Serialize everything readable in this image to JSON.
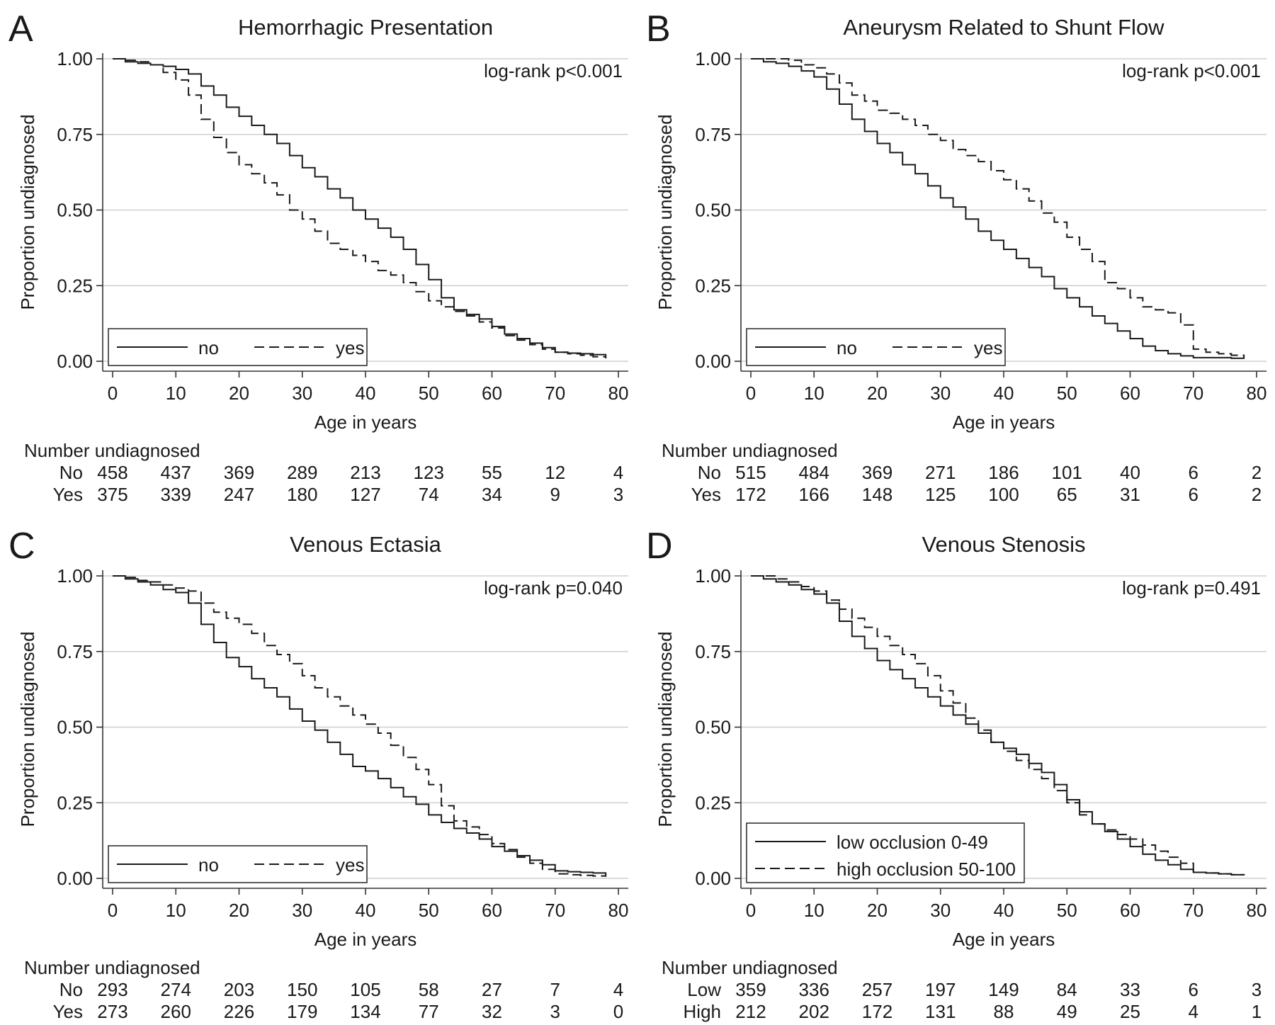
{
  "chart_data": [
    {
      "type": "line",
      "letter": "A",
      "title": "Hemorrhagic Presentation",
      "xlabel": "Age in years",
      "ylabel": "Proportion undiagnosed",
      "xlim": [
        0,
        80
      ],
      "ylim": [
        0,
        1
      ],
      "x_ticks": [
        "0",
        "10",
        "20",
        "30",
        "40",
        "50",
        "60",
        "70",
        "80"
      ],
      "y_ticks": [
        "0.00",
        "0.25",
        "0.50",
        "0.75",
        "1.00"
      ],
      "grid": true,
      "legend_position": "bottom-left",
      "annotation": "log-rank p<0.001",
      "series": [
        {
          "name": "no",
          "style": "solid",
          "x": [
            0,
            2,
            4,
            6,
            8,
            10,
            12,
            14,
            16,
            18,
            20,
            22,
            24,
            26,
            28,
            30,
            32,
            34,
            36,
            38,
            40,
            42,
            44,
            46,
            48,
            50,
            52,
            54,
            56,
            58,
            60,
            62,
            64,
            66,
            68,
            70,
            72,
            74,
            76,
            78
          ],
          "y": [
            1.0,
            0.99,
            0.985,
            0.98,
            0.975,
            0.965,
            0.95,
            0.91,
            0.88,
            0.84,
            0.81,
            0.78,
            0.75,
            0.72,
            0.68,
            0.64,
            0.61,
            0.57,
            0.54,
            0.5,
            0.47,
            0.44,
            0.41,
            0.37,
            0.32,
            0.27,
            0.21,
            0.17,
            0.155,
            0.14,
            0.115,
            0.09,
            0.075,
            0.06,
            0.045,
            0.03,
            0.027,
            0.025,
            0.022,
            0.01
          ]
        },
        {
          "name": "yes",
          "style": "dashed",
          "x": [
            0,
            2,
            4,
            6,
            8,
            10,
            12,
            14,
            16,
            18,
            20,
            22,
            24,
            26,
            28,
            30,
            32,
            34,
            36,
            38,
            40,
            42,
            44,
            46,
            48,
            50,
            52,
            54,
            56,
            58,
            60,
            62,
            64,
            66,
            68,
            70,
            72,
            74,
            76,
            78
          ],
          "y": [
            1.0,
            0.995,
            0.99,
            0.98,
            0.955,
            0.93,
            0.88,
            0.8,
            0.74,
            0.69,
            0.65,
            0.62,
            0.59,
            0.55,
            0.5,
            0.47,
            0.43,
            0.39,
            0.37,
            0.35,
            0.33,
            0.3,
            0.285,
            0.26,
            0.23,
            0.2,
            0.18,
            0.165,
            0.15,
            0.13,
            0.11,
            0.085,
            0.07,
            0.055,
            0.04,
            0.03,
            0.025,
            0.02,
            0.015,
            0.01
          ]
        }
      ],
      "risk_table": {
        "header": "Number undiagnosed",
        "rows": [
          {
            "label": "No",
            "values": [
              "458",
              "437",
              "369",
              "289",
              "213",
              "123",
              "55",
              "12",
              "4"
            ]
          },
          {
            "label": "Yes",
            "values": [
              "375",
              "339",
              "247",
              "180",
              "127",
              "74",
              "34",
              "9",
              "3"
            ]
          }
        ]
      }
    },
    {
      "type": "line",
      "letter": "B",
      "title": "Aneurysm Related to Shunt Flow",
      "xlabel": "Age in years",
      "ylabel": "Proportion undiagnosed",
      "xlim": [
        0,
        80
      ],
      "ylim": [
        0,
        1
      ],
      "x_ticks": [
        "0",
        "10",
        "20",
        "30",
        "40",
        "50",
        "60",
        "70",
        "80"
      ],
      "y_ticks": [
        "0.00",
        "0.25",
        "0.50",
        "0.75",
        "1.00"
      ],
      "grid": true,
      "legend_position": "bottom-left",
      "annotation": "log-rank p<0.001",
      "series": [
        {
          "name": "no",
          "style": "solid",
          "x": [
            0,
            2,
            4,
            6,
            8,
            10,
            12,
            14,
            16,
            18,
            20,
            22,
            24,
            26,
            28,
            30,
            32,
            34,
            36,
            38,
            40,
            42,
            44,
            46,
            48,
            50,
            52,
            54,
            56,
            58,
            60,
            62,
            64,
            66,
            68,
            70,
            72,
            74,
            76,
            78
          ],
          "y": [
            1.0,
            0.99,
            0.985,
            0.975,
            0.96,
            0.94,
            0.9,
            0.85,
            0.8,
            0.76,
            0.72,
            0.69,
            0.65,
            0.62,
            0.58,
            0.54,
            0.51,
            0.47,
            0.43,
            0.4,
            0.37,
            0.34,
            0.31,
            0.28,
            0.24,
            0.21,
            0.18,
            0.15,
            0.125,
            0.1,
            0.075,
            0.05,
            0.035,
            0.025,
            0.018,
            0.012,
            0.012,
            0.012,
            0.01,
            0.008
          ]
        },
        {
          "name": "yes",
          "style": "dashed",
          "x": [
            0,
            2,
            4,
            6,
            8,
            10,
            12,
            14,
            16,
            18,
            20,
            22,
            24,
            26,
            28,
            30,
            32,
            34,
            36,
            38,
            40,
            42,
            44,
            46,
            48,
            50,
            52,
            54,
            56,
            58,
            60,
            62,
            64,
            66,
            68,
            70,
            72,
            74,
            76,
            78
          ],
          "y": [
            1.0,
            1.0,
            1.0,
            0.995,
            0.98,
            0.97,
            0.95,
            0.92,
            0.88,
            0.86,
            0.83,
            0.82,
            0.8,
            0.78,
            0.75,
            0.73,
            0.7,
            0.68,
            0.66,
            0.63,
            0.6,
            0.57,
            0.53,
            0.49,
            0.46,
            0.41,
            0.37,
            0.33,
            0.26,
            0.24,
            0.21,
            0.18,
            0.17,
            0.16,
            0.12,
            0.04,
            0.03,
            0.025,
            0.02,
            0.01
          ]
        }
      ],
      "risk_table": {
        "header": "Number undiagnosed",
        "rows": [
          {
            "label": "No",
            "values": [
              "515",
              "484",
              "369",
              "271",
              "186",
              "101",
              "40",
              "6",
              "2"
            ]
          },
          {
            "label": "Yes",
            "values": [
              "172",
              "166",
              "148",
              "125",
              "100",
              "65",
              "31",
              "6",
              "2"
            ]
          }
        ]
      }
    },
    {
      "type": "line",
      "letter": "C",
      "title": "Venous Ectasia",
      "xlabel": "Age in years",
      "ylabel": "Proportion undiagnosed",
      "xlim": [
        0,
        80
      ],
      "ylim": [
        0,
        1
      ],
      "x_ticks": [
        "0",
        "10",
        "20",
        "30",
        "40",
        "50",
        "60",
        "70",
        "80"
      ],
      "y_ticks": [
        "0.00",
        "0.25",
        "0.50",
        "0.75",
        "1.00"
      ],
      "grid": true,
      "legend_position": "bottom-left",
      "annotation": "log-rank p=0.040",
      "series": [
        {
          "name": "no",
          "style": "solid",
          "x": [
            0,
            2,
            4,
            6,
            8,
            10,
            12,
            14,
            16,
            18,
            20,
            22,
            24,
            26,
            28,
            30,
            32,
            34,
            36,
            38,
            40,
            42,
            44,
            46,
            48,
            50,
            52,
            54,
            56,
            58,
            60,
            62,
            64,
            66,
            68,
            70,
            72,
            74,
            76,
            78
          ],
          "y": [
            1.0,
            0.99,
            0.98,
            0.97,
            0.955,
            0.945,
            0.91,
            0.84,
            0.78,
            0.73,
            0.7,
            0.66,
            0.63,
            0.6,
            0.56,
            0.52,
            0.49,
            0.45,
            0.41,
            0.37,
            0.355,
            0.33,
            0.3,
            0.27,
            0.245,
            0.21,
            0.185,
            0.165,
            0.15,
            0.13,
            0.105,
            0.09,
            0.075,
            0.06,
            0.045,
            0.025,
            0.022,
            0.02,
            0.018,
            0.01
          ]
        },
        {
          "name": "yes",
          "style": "dashed",
          "x": [
            0,
            2,
            4,
            6,
            8,
            10,
            12,
            14,
            16,
            18,
            20,
            22,
            24,
            26,
            28,
            30,
            32,
            34,
            36,
            38,
            40,
            42,
            44,
            46,
            48,
            50,
            52,
            54,
            56,
            58,
            60,
            62,
            64,
            66,
            68,
            70,
            72,
            74,
            76,
            78
          ],
          "y": [
            1.0,
            0.995,
            0.985,
            0.98,
            0.97,
            0.96,
            0.95,
            0.91,
            0.88,
            0.86,
            0.84,
            0.81,
            0.77,
            0.74,
            0.71,
            0.67,
            0.63,
            0.6,
            0.57,
            0.54,
            0.51,
            0.48,
            0.44,
            0.4,
            0.36,
            0.31,
            0.24,
            0.19,
            0.17,
            0.145,
            0.115,
            0.095,
            0.07,
            0.05,
            0.03,
            0.015,
            0.012,
            0.01,
            0.008,
            0.005
          ]
        }
      ],
      "risk_table": {
        "header": "Number undiagnosed",
        "rows": [
          {
            "label": "No",
            "values": [
              "293",
              "274",
              "203",
              "150",
              "105",
              "58",
              "27",
              "7",
              "4"
            ]
          },
          {
            "label": "Yes",
            "values": [
              "273",
              "260",
              "226",
              "179",
              "134",
              "77",
              "32",
              "3",
              "0"
            ]
          }
        ]
      }
    },
    {
      "type": "line",
      "letter": "D",
      "title": "Venous Stenosis",
      "xlabel": "Age in years",
      "ylabel": "Proportion undiagnosed",
      "xlim": [
        0,
        80
      ],
      "ylim": [
        0,
        1
      ],
      "x_ticks": [
        "0",
        "10",
        "20",
        "30",
        "40",
        "50",
        "60",
        "70",
        "80"
      ],
      "y_ticks": [
        "0.00",
        "0.25",
        "0.50",
        "0.75",
        "1.00"
      ],
      "grid": true,
      "legend_position": "bottom-left",
      "annotation": "log-rank p=0.491",
      "series": [
        {
          "name": "low occlusion 0-49",
          "style": "solid",
          "x": [
            0,
            2,
            4,
            6,
            8,
            10,
            12,
            14,
            16,
            18,
            20,
            22,
            24,
            26,
            28,
            30,
            32,
            34,
            36,
            38,
            40,
            42,
            44,
            46,
            48,
            50,
            52,
            54,
            56,
            58,
            60,
            62,
            64,
            66,
            68,
            70,
            72,
            74,
            76,
            78
          ],
          "y": [
            1.0,
            0.99,
            0.98,
            0.97,
            0.955,
            0.94,
            0.91,
            0.85,
            0.8,
            0.76,
            0.72,
            0.69,
            0.66,
            0.63,
            0.6,
            0.57,
            0.54,
            0.51,
            0.48,
            0.45,
            0.43,
            0.41,
            0.38,
            0.35,
            0.31,
            0.26,
            0.22,
            0.18,
            0.155,
            0.13,
            0.105,
            0.08,
            0.06,
            0.045,
            0.03,
            0.02,
            0.018,
            0.015,
            0.012,
            0.01
          ]
        },
        {
          "name": "high occlusion 50-100",
          "style": "dashed",
          "x": [
            0,
            2,
            4,
            6,
            8,
            10,
            12,
            14,
            16,
            18,
            20,
            22,
            24,
            26,
            28,
            30,
            32,
            34,
            36,
            38,
            40,
            42,
            44,
            46,
            48,
            50,
            52,
            54,
            56,
            58,
            60,
            62,
            64,
            66,
            68,
            70,
            72,
            74,
            76,
            78
          ],
          "y": [
            1.0,
            1.0,
            0.99,
            0.98,
            0.965,
            0.95,
            0.92,
            0.89,
            0.86,
            0.83,
            0.8,
            0.77,
            0.74,
            0.71,
            0.67,
            0.62,
            0.58,
            0.53,
            0.49,
            0.45,
            0.42,
            0.39,
            0.36,
            0.33,
            0.29,
            0.25,
            0.21,
            0.18,
            0.16,
            0.145,
            0.13,
            0.11,
            0.09,
            0.07,
            0.05,
            0.02,
            0.018,
            0.015,
            0.012,
            0.01
          ]
        }
      ],
      "risk_table": {
        "header": "Number undiagnosed",
        "rows": [
          {
            "label": "Low",
            "values": [
              "359",
              "336",
              "257",
              "197",
              "149",
              "84",
              "33",
              "6",
              "3"
            ]
          },
          {
            "label": "High",
            "values": [
              "212",
              "202",
              "172",
              "131",
              "88",
              "49",
              "25",
              "4",
              "1"
            ]
          }
        ]
      }
    }
  ]
}
